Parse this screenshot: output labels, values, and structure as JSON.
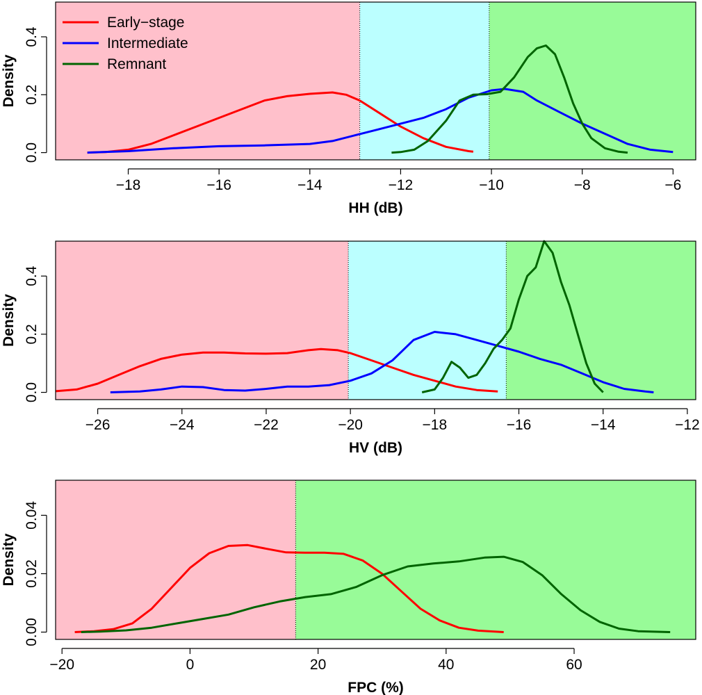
{
  "chart_data": [
    {
      "type": "area",
      "xlabel": "HH (dB)",
      "ylabel": "Density",
      "xlim": [
        -19.6,
        -5.5
      ],
      "ylim": [
        -0.025,
        0.52
      ],
      "xticks": [
        -18,
        -16,
        -14,
        -12,
        -10,
        -8,
        -6
      ],
      "xtick_labels": [
        "−18",
        "−16",
        "−14",
        "−12",
        "−10",
        "−8",
        "−6"
      ],
      "yticks": [
        0.0,
        0.2,
        0.4
      ],
      "ytick_labels": [
        "0.0",
        "0.2",
        "0.4"
      ],
      "grid": false,
      "legend_position": "top-left",
      "thresholds": [
        -12.9,
        -10.05
      ],
      "regions": [
        {
          "from": -19.6,
          "to": -12.9,
          "color": "#ffc0cb"
        },
        {
          "from": -12.9,
          "to": -10.05,
          "color": "#bbffff"
        },
        {
          "from": -10.05,
          "to": -5.5,
          "color": "#98fb98"
        }
      ],
      "series": [
        {
          "name": "Early−stage",
          "color": "#ff0000",
          "points": [
            [
              -18.9,
              0.0
            ],
            [
              -18.5,
              0.002
            ],
            [
              -18.0,
              0.01
            ],
            [
              -17.5,
              0.03
            ],
            [
              -17.0,
              0.06
            ],
            [
              -16.5,
              0.09
            ],
            [
              -16.0,
              0.12
            ],
            [
              -15.5,
              0.15
            ],
            [
              -15.0,
              0.18
            ],
            [
              -14.5,
              0.195
            ],
            [
              -14.0,
              0.203
            ],
            [
              -13.5,
              0.208
            ],
            [
              -13.2,
              0.2
            ],
            [
              -12.9,
              0.18
            ],
            [
              -12.5,
              0.14
            ],
            [
              -12.0,
              0.09
            ],
            [
              -11.5,
              0.05
            ],
            [
              -11.0,
              0.02
            ],
            [
              -10.5,
              0.005
            ],
            [
              -10.4,
              0.003
            ]
          ]
        },
        {
          "name": "Intermediate",
          "color": "#0000ff",
          "points": [
            [
              -18.9,
              0.0
            ],
            [
              -18.0,
              0.005
            ],
            [
              -17.0,
              0.015
            ],
            [
              -16.0,
              0.022
            ],
            [
              -15.0,
              0.025
            ],
            [
              -14.0,
              0.03
            ],
            [
              -13.5,
              0.04
            ],
            [
              -13.0,
              0.06
            ],
            [
              -12.5,
              0.08
            ],
            [
              -12.0,
              0.1
            ],
            [
              -11.5,
              0.12
            ],
            [
              -11.0,
              0.15
            ],
            [
              -10.5,
              0.19
            ],
            [
              -10.0,
              0.215
            ],
            [
              -9.7,
              0.22
            ],
            [
              -9.3,
              0.21
            ],
            [
              -9.0,
              0.18
            ],
            [
              -8.5,
              0.14
            ],
            [
              -8.0,
              0.1
            ],
            [
              -7.5,
              0.065
            ],
            [
              -7.0,
              0.03
            ],
            [
              -6.5,
              0.01
            ],
            [
              -6.0,
              0.002
            ]
          ]
        },
        {
          "name": "Remnant",
          "color": "#006400",
          "points": [
            [
              -12.2,
              0.0
            ],
            [
              -12.0,
              0.002
            ],
            [
              -11.7,
              0.01
            ],
            [
              -11.4,
              0.04
            ],
            [
              -11.0,
              0.11
            ],
            [
              -10.7,
              0.18
            ],
            [
              -10.4,
              0.2
            ],
            [
              -10.1,
              0.202
            ],
            [
              -9.8,
              0.21
            ],
            [
              -9.5,
              0.26
            ],
            [
              -9.2,
              0.33
            ],
            [
              -9.0,
              0.36
            ],
            [
              -8.8,
              0.37
            ],
            [
              -8.6,
              0.34
            ],
            [
              -8.4,
              0.26
            ],
            [
              -8.2,
              0.17
            ],
            [
              -8.0,
              0.1
            ],
            [
              -7.8,
              0.05
            ],
            [
              -7.5,
              0.015
            ],
            [
              -7.2,
              0.003
            ],
            [
              -7.0,
              0.0
            ]
          ]
        }
      ],
      "legend": [
        {
          "label": "Early−stage",
          "color": "#ff0000"
        },
        {
          "label": "Intermediate",
          "color": "#0000ff"
        },
        {
          "label": "Remnant",
          "color": "#006400"
        }
      ]
    },
    {
      "type": "area",
      "xlabel": "HV (dB)",
      "ylabel": "Density",
      "xlim": [
        -27,
        -11.8
      ],
      "ylim": [
        -0.025,
        0.52
      ],
      "xticks": [
        -26,
        -24,
        -22,
        -20,
        -18,
        -16,
        -14,
        -12
      ],
      "xtick_labels": [
        "−26",
        "−24",
        "−22",
        "−20",
        "−18",
        "−16",
        "−14",
        "−12"
      ],
      "yticks": [
        0.0,
        0.2,
        0.4
      ],
      "ytick_labels": [
        "0.0",
        "0.2",
        "0.4"
      ],
      "grid": false,
      "thresholds": [
        -20.05,
        -16.3
      ],
      "regions": [
        {
          "from": -27,
          "to": -20.05,
          "color": "#ffc0cb"
        },
        {
          "from": -20.05,
          "to": -16.3,
          "color": "#bbffff"
        },
        {
          "from": -16.3,
          "to": -11.8,
          "color": "#98fb98"
        }
      ],
      "series": [
        {
          "name": "Early−stage",
          "color": "#ff0000",
          "points": [
            [
              -27.0,
              0.004
            ],
            [
              -26.5,
              0.01
            ],
            [
              -26.0,
              0.03
            ],
            [
              -25.5,
              0.06
            ],
            [
              -25.0,
              0.09
            ],
            [
              -24.5,
              0.115
            ],
            [
              -24.0,
              0.13
            ],
            [
              -23.5,
              0.137
            ],
            [
              -23.0,
              0.137
            ],
            [
              -22.5,
              0.134
            ],
            [
              -22.0,
              0.133
            ],
            [
              -21.5,
              0.135
            ],
            [
              -21.0,
              0.145
            ],
            [
              -20.7,
              0.149
            ],
            [
              -20.3,
              0.145
            ],
            [
              -20.0,
              0.135
            ],
            [
              -19.5,
              0.11
            ],
            [
              -19.0,
              0.085
            ],
            [
              -18.5,
              0.06
            ],
            [
              -18.0,
              0.04
            ],
            [
              -17.5,
              0.02
            ],
            [
              -17.0,
              0.008
            ],
            [
              -16.5,
              0.003
            ]
          ]
        },
        {
          "name": "Intermediate",
          "color": "#0000ff",
          "points": [
            [
              -25.7,
              0.0
            ],
            [
              -25.0,
              0.003
            ],
            [
              -24.5,
              0.01
            ],
            [
              -24.0,
              0.02
            ],
            [
              -23.5,
              0.018
            ],
            [
              -23.0,
              0.008
            ],
            [
              -22.5,
              0.006
            ],
            [
              -22.0,
              0.012
            ],
            [
              -21.5,
              0.02
            ],
            [
              -21.0,
              0.02
            ],
            [
              -20.5,
              0.025
            ],
            [
              -20.0,
              0.04
            ],
            [
              -19.5,
              0.065
            ],
            [
              -19.0,
              0.11
            ],
            [
              -18.5,
              0.18
            ],
            [
              -18.0,
              0.208
            ],
            [
              -17.5,
              0.2
            ],
            [
              -17.0,
              0.18
            ],
            [
              -16.5,
              0.16
            ],
            [
              -16.0,
              0.14
            ],
            [
              -15.5,
              0.115
            ],
            [
              -15.0,
              0.095
            ],
            [
              -14.5,
              0.065
            ],
            [
              -14.0,
              0.035
            ],
            [
              -13.5,
              0.012
            ],
            [
              -13.0,
              0.003
            ],
            [
              -12.8,
              0.0
            ]
          ]
        },
        {
          "name": "Remnant",
          "color": "#006400",
          "points": [
            [
              -18.3,
              0.0
            ],
            [
              -18.0,
              0.01
            ],
            [
              -17.8,
              0.05
            ],
            [
              -17.6,
              0.105
            ],
            [
              -17.4,
              0.085
            ],
            [
              -17.2,
              0.05
            ],
            [
              -17.0,
              0.06
            ],
            [
              -16.8,
              0.1
            ],
            [
              -16.6,
              0.15
            ],
            [
              -16.4,
              0.18
            ],
            [
              -16.2,
              0.22
            ],
            [
              -16.0,
              0.32
            ],
            [
              -15.8,
              0.4
            ],
            [
              -15.6,
              0.43
            ],
            [
              -15.4,
              0.52
            ],
            [
              -15.2,
              0.48
            ],
            [
              -15.0,
              0.38
            ],
            [
              -14.8,
              0.3
            ],
            [
              -14.6,
              0.2
            ],
            [
              -14.4,
              0.1
            ],
            [
              -14.2,
              0.03
            ],
            [
              -14.0,
              0.0
            ]
          ]
        }
      ]
    },
    {
      "type": "area",
      "xlabel": "FPC (%)",
      "ylabel": "Density",
      "xlim": [
        -21,
        79
      ],
      "ylim": [
        -0.0025,
        0.052
      ],
      "xticks": [
        -20,
        0,
        20,
        40,
        60
      ],
      "xtick_labels": [
        "−20",
        "0",
        "20",
        "40",
        "60"
      ],
      "yticks": [
        0.0,
        0.02,
        0.04
      ],
      "ytick_labels": [
        "0.00",
        "0.02",
        "0.04"
      ],
      "grid": false,
      "thresholds": [
        16.5
      ],
      "regions": [
        {
          "from": -21,
          "to": 16.5,
          "color": "#ffc0cb"
        },
        {
          "from": 16.5,
          "to": 79,
          "color": "#98fb98"
        }
      ],
      "series": [
        {
          "name": "Early−stage",
          "color": "#ff0000",
          "points": [
            [
              -18,
              0.0
            ],
            [
              -15,
              0.0003
            ],
            [
              -12,
              0.001
            ],
            [
              -9,
              0.003
            ],
            [
              -6,
              0.008
            ],
            [
              -3,
              0.015
            ],
            [
              0,
              0.022
            ],
            [
              3,
              0.027
            ],
            [
              6,
              0.0295
            ],
            [
              9,
              0.0298
            ],
            [
              12,
              0.0285
            ],
            [
              15,
              0.0273
            ],
            [
              18,
              0.0272
            ],
            [
              21,
              0.0272
            ],
            [
              24,
              0.0268
            ],
            [
              27,
              0.0245
            ],
            [
              30,
              0.02
            ],
            [
              33,
              0.014
            ],
            [
              36,
              0.008
            ],
            [
              39,
              0.004
            ],
            [
              42,
              0.0015
            ],
            [
              45,
              0.0005
            ],
            [
              49,
              0.0
            ]
          ]
        },
        {
          "name": "Remnant",
          "color": "#006400",
          "points": [
            [
              -17,
              0.0
            ],
            [
              -14,
              0.0002
            ],
            [
              -10,
              0.0006
            ],
            [
              -6,
              0.0015
            ],
            [
              -2,
              0.003
            ],
            [
              2,
              0.0045
            ],
            [
              6,
              0.006
            ],
            [
              10,
              0.0085
            ],
            [
              14,
              0.0105
            ],
            [
              18,
              0.012
            ],
            [
              22,
              0.013
            ],
            [
              26,
              0.0155
            ],
            [
              30,
              0.0195
            ],
            [
              34,
              0.0225
            ],
            [
              38,
              0.0235
            ],
            [
              42,
              0.0242
            ],
            [
              46,
              0.0255
            ],
            [
              49,
              0.0258
            ],
            [
              52,
              0.024
            ],
            [
              55,
              0.0195
            ],
            [
              58,
              0.013
            ],
            [
              61,
              0.0075
            ],
            [
              64,
              0.0035
            ],
            [
              67,
              0.0012
            ],
            [
              70,
              0.0003
            ],
            [
              75,
              0.0
            ]
          ]
        }
      ]
    }
  ]
}
